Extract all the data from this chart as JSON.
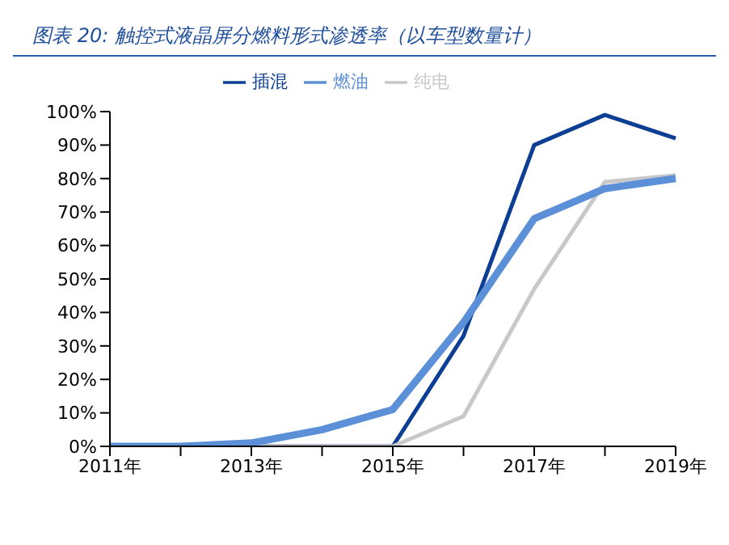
{
  "chart_data": {
    "type": "line",
    "title": "图表 20: 触控式液晶屏分燃料形式渗透率（以车型数量计）",
    "categories": [
      "2011年",
      null,
      "2013年",
      null,
      "2015年",
      null,
      "2017年",
      null,
      "2019年"
    ],
    "series": [
      {
        "name": "插混",
        "color": "#0c3f94",
        "values": [
          0,
          0,
          0,
          0,
          0,
          33,
          90,
          99,
          92
        ]
      },
      {
        "name": "纯电",
        "color": "#c8c8c8",
        "values": [
          0,
          0,
          0,
          0,
          0,
          9,
          47,
          79,
          81
        ]
      },
      {
        "name": "燃油",
        "color": "#5b8fd8",
        "values": [
          0,
          0,
          1,
          5,
          11,
          37,
          68,
          77,
          80
        ]
      }
    ],
    "ylim": [
      0,
      100
    ],
    "yticks": [
      {
        "value": 0,
        "label": "0%"
      },
      {
        "value": 10,
        "label": "10%"
      },
      {
        "value": 20,
        "label": "20%"
      },
      {
        "value": 30,
        "label": "30%"
      },
      {
        "value": 40,
        "label": "40%"
      },
      {
        "value": 50,
        "label": "50%"
      },
      {
        "value": 60,
        "label": "60%"
      },
      {
        "value": 70,
        "label": "70%"
      },
      {
        "value": 80,
        "label": "80%"
      },
      {
        "value": 90,
        "label": "90%"
      },
      {
        "value": 100,
        "label": "100%"
      }
    ],
    "legend": "top",
    "grid": false,
    "marker": "none",
    "line_style": "solid"
  }
}
